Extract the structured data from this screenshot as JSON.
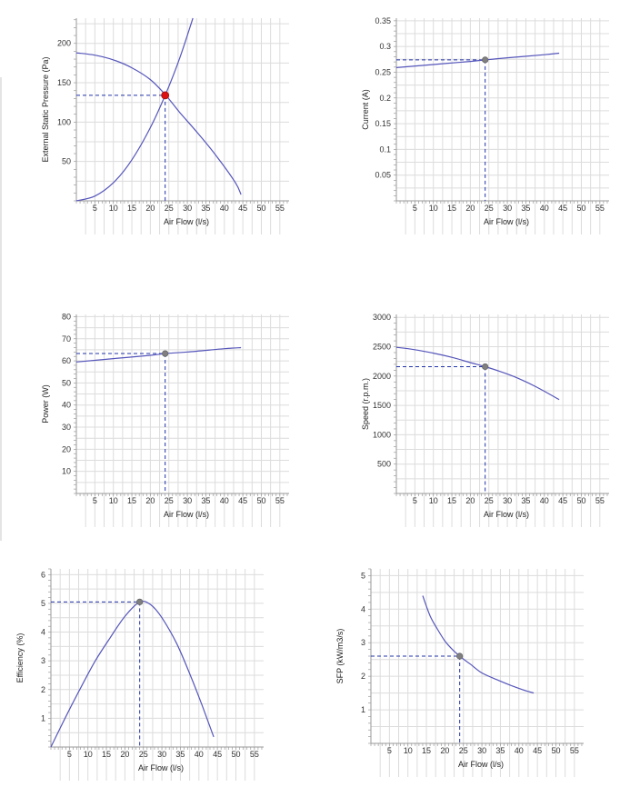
{
  "colors": {
    "curve": "#5555bb",
    "guide": "#2233aa",
    "grid": "#dcdcdc",
    "axis": "#9a9a9a",
    "marker_main": "#dd1111",
    "marker": "#808080"
  },
  "chart_data": [
    {
      "id": "pressure",
      "type": "line",
      "xlabel": "Air Flow (l/s)",
      "ylabel": "External Static Pressure (Pa)",
      "xlim": [
        0,
        57.5
      ],
      "ylim": [
        0,
        232
      ],
      "xticks": [
        5,
        10,
        15,
        20,
        25,
        30,
        35,
        40,
        45,
        50,
        55
      ],
      "yticks": [
        50,
        100,
        150,
        200
      ],
      "series": [
        {
          "values": [
            [
              0,
              188
            ],
            [
              5,
              185
            ],
            [
              10,
              179
            ],
            [
              15,
              169
            ],
            [
              20,
              154
            ],
            [
              24,
              135
            ],
            [
              28,
              112
            ],
            [
              33,
              85
            ],
            [
              38,
              56
            ],
            [
              43,
              23
            ],
            [
              44.5,
              8
            ]
          ]
        },
        {
          "values": [
            [
              0,
              0
            ],
            [
              5,
              6
            ],
            [
              10,
              23
            ],
            [
              15,
              52
            ],
            [
              20,
              93
            ],
            [
              24,
              134
            ],
            [
              28,
              182
            ],
            [
              31.5,
              232
            ]
          ]
        }
      ],
      "operating_point": [
        24,
        134
      ],
      "point_style": "main"
    },
    {
      "id": "current",
      "type": "line",
      "xlabel": "Air Flow (l/s)",
      "ylabel": "Current (A)",
      "xlim": [
        0,
        57.5
      ],
      "ylim": [
        0,
        0.355
      ],
      "xticks": [
        5,
        10,
        15,
        20,
        25,
        30,
        35,
        40,
        45,
        50,
        55
      ],
      "yticks": [
        0.05,
        0.1,
        0.15,
        0.2,
        0.25,
        0.3,
        0.35
      ],
      "series": [
        {
          "values": [
            [
              0,
              0.259
            ],
            [
              10,
              0.265
            ],
            [
              20,
              0.271
            ],
            [
              24,
              0.274
            ],
            [
              30,
              0.278
            ],
            [
              40,
              0.284
            ],
            [
              44,
              0.287
            ]
          ]
        }
      ],
      "operating_point": [
        24,
        0.274
      ],
      "point_style": "normal"
    },
    {
      "id": "power",
      "type": "line",
      "xlabel": "Air Flow (l/s)",
      "ylabel": "Power (W)",
      "xlim": [
        0,
        57.5
      ],
      "ylim": [
        0,
        81
      ],
      "xticks": [
        5,
        10,
        15,
        20,
        25,
        30,
        35,
        40,
        45,
        50,
        55
      ],
      "yticks": [
        10,
        20,
        30,
        40,
        50,
        60,
        70,
        80
      ],
      "series": [
        {
          "values": [
            [
              0,
              59.5
            ],
            [
              10,
              61
            ],
            [
              20,
              62.5
            ],
            [
              24,
              63.3
            ],
            [
              30,
              64
            ],
            [
              40,
              65.5
            ],
            [
              44.5,
              66
            ]
          ]
        }
      ],
      "operating_point": [
        24,
        63.3
      ],
      "point_style": "normal"
    },
    {
      "id": "speed",
      "type": "line",
      "xlabel": "Air Flow (l/s)",
      "ylabel": "Speed (r.p.m.)",
      "xlim": [
        0,
        57.5
      ],
      "ylim": [
        0,
        3050
      ],
      "xticks": [
        5,
        10,
        15,
        20,
        25,
        30,
        35,
        40,
        45,
        50,
        55
      ],
      "yticks": [
        500,
        1000,
        1500,
        2000,
        2500,
        3000
      ],
      "series": [
        {
          "values": [
            [
              0,
              2490
            ],
            [
              5,
              2450
            ],
            [
              10,
              2390
            ],
            [
              15,
              2320
            ],
            [
              20,
              2230
            ],
            [
              24,
              2160
            ],
            [
              28,
              2080
            ],
            [
              33,
              1960
            ],
            [
              38,
              1810
            ],
            [
              44,
              1600
            ]
          ]
        }
      ],
      "operating_point": [
        24,
        2160
      ],
      "point_style": "normal"
    },
    {
      "id": "efficiency",
      "type": "line",
      "xlabel": "Air Flow (l/s)",
      "ylabel": "Efficiency (%)",
      "xlim": [
        0,
        57.5
      ],
      "ylim": [
        0,
        6.2
      ],
      "xticks": [
        5,
        10,
        15,
        20,
        25,
        30,
        35,
        40,
        45,
        50,
        55
      ],
      "yticks": [
        1,
        2,
        3,
        4,
        5,
        6
      ],
      "series": [
        {
          "values": [
            [
              0,
              0
            ],
            [
              4,
              1.05
            ],
            [
              8,
              2.05
            ],
            [
              12,
              3.0
            ],
            [
              16,
              3.8
            ],
            [
              20,
              4.55
            ],
            [
              24,
              5.05
            ],
            [
              27,
              4.95
            ],
            [
              30,
              4.5
            ],
            [
              34,
              3.6
            ],
            [
              38,
              2.4
            ],
            [
              41,
              1.4
            ],
            [
              44,
              0.35
            ]
          ]
        }
      ],
      "operating_point": [
        24,
        5.05
      ],
      "point_style": "normal"
    },
    {
      "id": "sfp",
      "type": "line",
      "xlabel": "Air Flow (l/s)",
      "ylabel": "SFP (kW/m3/s)",
      "xlim": [
        0,
        57.5
      ],
      "ylim": [
        0,
        5.2
      ],
      "xticks": [
        5,
        10,
        15,
        20,
        25,
        30,
        35,
        40,
        45,
        50,
        55
      ],
      "yticks": [
        1,
        2,
        3,
        4,
        5
      ],
      "series": [
        {
          "values": [
            [
              14,
              4.4
            ],
            [
              16,
              3.8
            ],
            [
              18,
              3.4
            ],
            [
              20,
              3.05
            ],
            [
              22,
              2.8
            ],
            [
              24,
              2.6
            ],
            [
              27,
              2.35
            ],
            [
              30,
              2.1
            ],
            [
              34,
              1.9
            ],
            [
              38,
              1.72
            ],
            [
              41,
              1.6
            ],
            [
              44,
              1.5
            ]
          ]
        }
      ],
      "operating_point": [
        24,
        2.6
      ],
      "point_style": "normal"
    }
  ]
}
